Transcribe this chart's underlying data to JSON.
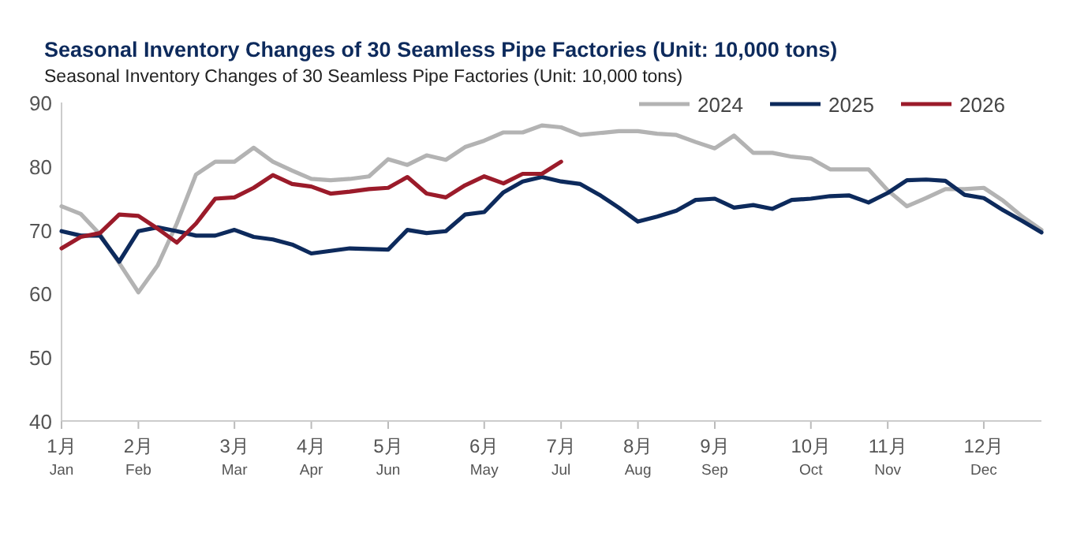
{
  "chart_data": {
    "type": "line",
    "title": "Seasonal Inventory Changes of 30 Seamless Pipe Factories (Unit: 10,000 tons)",
    "subtitle": "Seasonal Inventory Changes of 30 Seamless Pipe Factories (Unit: 10,000 tons)",
    "categories": [
      "1月\nJan",
      null,
      null,
      null,
      "2月\nFeb",
      null,
      null,
      null,
      null,
      "3月\nMar",
      null,
      null,
      null,
      "4月\nApr",
      null,
      null,
      null,
      "5月\nJun",
      null,
      null,
      null,
      null,
      "6月\nMay",
      null,
      null,
      null,
      "7月\nJul",
      null,
      null,
      null,
      "8月\nAug",
      null,
      null,
      null,
      "9月\nSep",
      null,
      null,
      null,
      null,
      "10月\nOct",
      null,
      null,
      null,
      "11月\nNov",
      null,
      null,
      null,
      null,
      "12月\nDec",
      null,
      null,
      null
    ],
    "series": [
      {
        "name": "2024",
        "color": "#b3b3b3",
        "values": [
          73.7,
          72.5,
          69.3,
          64.8,
          60.2,
          64.4,
          71,
          78.7,
          80.7,
          80.7,
          82.9,
          80.7,
          79.3,
          78,
          77.8,
          78,
          78.4,
          81.1,
          80.2,
          81.7,
          81,
          83,
          84,
          85.3,
          85.3,
          86.4,
          86.1,
          84.9,
          85.2,
          85.5,
          85.5,
          85.1,
          84.9,
          83.8,
          82.8,
          84.8,
          82.1,
          82.1,
          81.5,
          81.2,
          79.5,
          79.5,
          79.5,
          76.2,
          73.7,
          75,
          76.4,
          76.4,
          76.6,
          74.6,
          72.1,
          70
        ]
      },
      {
        "name": "2025",
        "color": "#0d2a5c",
        "values": [
          69.8,
          69.1,
          69.1,
          65,
          69.8,
          70.4,
          69.8,
          69.1,
          69.1,
          70,
          68.9,
          68.5,
          67.7,
          66.3,
          66.7,
          67.1,
          67,
          66.9,
          70,
          69.5,
          69.8,
          72.4,
          72.8,
          75.9,
          77.6,
          78.3,
          77.6,
          77.2,
          75.5,
          73.5,
          71.3,
          72.1,
          73,
          74.7,
          74.9,
          73.5,
          73.9,
          73.3,
          74.7,
          74.9,
          75.3,
          75.4,
          74.3,
          75.8,
          77.8,
          77.9,
          77.7,
          75.5,
          75,
          73.1,
          71.4,
          69.6
        ]
      },
      {
        "name": "2026",
        "color": "#9b1b2a",
        "values": [
          67.1,
          68.9,
          69.5,
          72.4,
          72.2,
          70.2,
          68,
          71,
          74.9,
          75.1,
          76.6,
          78.6,
          77.2,
          76.8,
          75.7,
          76,
          76.4,
          76.6,
          78.3,
          75.7,
          75.1,
          77,
          78.4,
          77.3,
          78.8,
          78.8,
          80.7,
          null,
          null,
          null,
          null,
          null,
          null,
          null,
          null,
          null,
          null,
          null,
          null,
          null,
          null,
          null,
          null,
          null,
          null,
          null,
          null,
          null,
          null,
          null,
          null,
          null
        ]
      }
    ],
    "ylim": [
      40,
      90
    ],
    "yticks": [
      40,
      50,
      60,
      70,
      80,
      90
    ],
    "legend": "top right",
    "grid": false,
    "marker": "none",
    "line_style": "solid"
  }
}
